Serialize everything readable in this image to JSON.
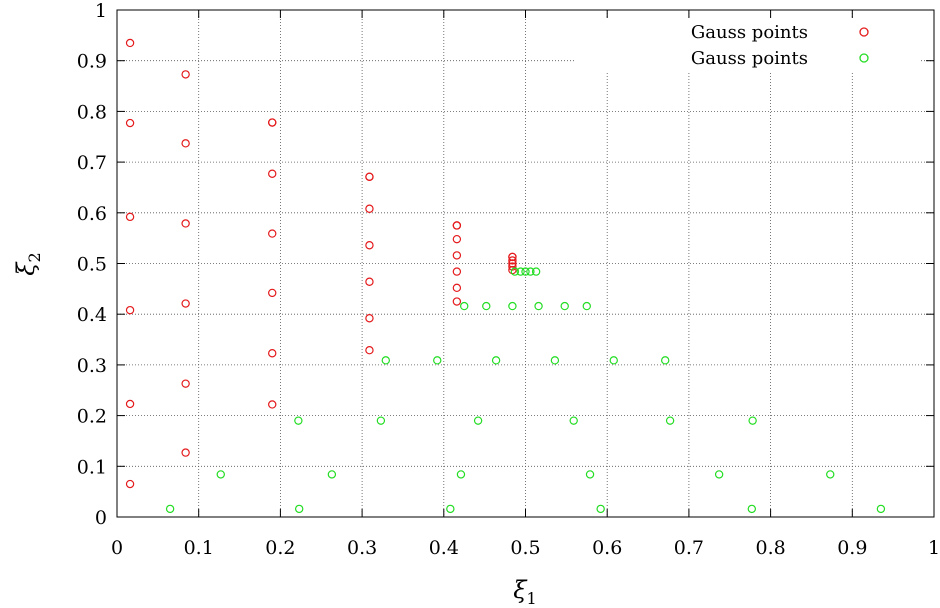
{
  "chart_data": {
    "type": "scatter",
    "xlabel": "ξ",
    "xlabel_sub": "1",
    "ylabel": "ξ",
    "ylabel_sub": "2",
    "xlim": [
      0,
      1
    ],
    "ylim": [
      0,
      1
    ],
    "x_ticks": [
      "0",
      "0.1",
      "0.2",
      "0.3",
      "0.4",
      "0.5",
      "0.6",
      "0.7",
      "0.8",
      "0.9",
      "1"
    ],
    "y_ticks": [
      "0",
      "0.1",
      "0.2",
      "0.3",
      "0.4",
      "0.5",
      "0.6",
      "0.7",
      "0.8",
      "0.9",
      "1"
    ],
    "grid": true,
    "legend_position": "top-right",
    "series": [
      {
        "name": "Gauss points",
        "color": "#e41a1c",
        "marker": "open-circle",
        "x": [
          0.016,
          0.016,
          0.016,
          0.016,
          0.016,
          0.016,
          0.084,
          0.084,
          0.084,
          0.084,
          0.084,
          0.084,
          0.19,
          0.19,
          0.19,
          0.19,
          0.19,
          0.19,
          0.19,
          0.309,
          0.309,
          0.309,
          0.309,
          0.309,
          0.309,
          0.309,
          0.416,
          0.416,
          0.416,
          0.416,
          0.416,
          0.416,
          0.416,
          0.484,
          0.484,
          0.484,
          0.484,
          0.484,
          0.484
        ],
        "y": [
          0.065,
          0.223,
          0.408,
          0.592,
          0.777,
          0.935,
          0.127,
          0.263,
          0.421,
          0.579,
          0.737,
          0.873,
          0.222,
          0.323,
          0.442,
          0.559,
          0.677,
          0.778,
          0.778,
          0.329,
          0.392,
          0.464,
          0.536,
          0.608,
          0.671,
          0.671,
          0.425,
          0.452,
          0.484,
          0.516,
          0.548,
          0.575,
          0.575,
          0.487,
          0.494,
          0.5,
          0.506,
          0.513,
          0.513
        ]
      },
      {
        "name": "Gauss points",
        "color": "#22dd22",
        "marker": "open-circle",
        "x": [
          0.065,
          0.223,
          0.408,
          0.592,
          0.777,
          0.935,
          0.127,
          0.263,
          0.421,
          0.579,
          0.737,
          0.873,
          0.222,
          0.323,
          0.442,
          0.559,
          0.677,
          0.778,
          0.329,
          0.392,
          0.464,
          0.536,
          0.608,
          0.671,
          0.425,
          0.452,
          0.484,
          0.516,
          0.548,
          0.575,
          0.487,
          0.494,
          0.5,
          0.506,
          0.513
        ],
        "y": [
          0.016,
          0.016,
          0.016,
          0.016,
          0.016,
          0.016,
          0.084,
          0.084,
          0.084,
          0.084,
          0.084,
          0.084,
          0.19,
          0.19,
          0.19,
          0.19,
          0.19,
          0.19,
          0.309,
          0.309,
          0.309,
          0.309,
          0.309,
          0.309,
          0.416,
          0.416,
          0.416,
          0.416,
          0.416,
          0.416,
          0.484,
          0.484,
          0.484,
          0.484,
          0.484
        ]
      }
    ]
  }
}
